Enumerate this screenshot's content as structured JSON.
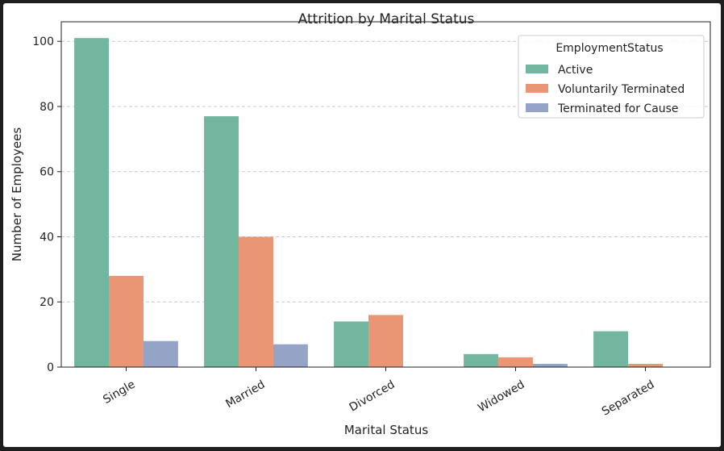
{
  "chart_data": {
    "type": "bar",
    "title": "Attrition by Marital Status",
    "xlabel": "Marital Status",
    "ylabel": "Number of Employees",
    "categories": [
      "Single",
      "Married",
      "Divorced",
      "Widowed",
      "Separated"
    ],
    "series": [
      {
        "name": "Active",
        "values": [
          101,
          77,
          14,
          4,
          11
        ],
        "color": "#72b6a0"
      },
      {
        "name": "Voluntarily Terminated",
        "values": [
          28,
          40,
          16,
          3,
          1
        ],
        "color": "#ea9674"
      },
      {
        "name": "Terminated for Cause",
        "values": [
          8,
          7,
          0,
          1,
          0
        ],
        "color": "#95a3c6"
      }
    ],
    "ylim": [
      0,
      106
    ],
    "yticks": [
      0,
      20,
      40,
      60,
      80,
      100
    ],
    "grid": "y-dashed",
    "legend": {
      "title": "EmploymentStatus",
      "placement": "top-right"
    }
  }
}
